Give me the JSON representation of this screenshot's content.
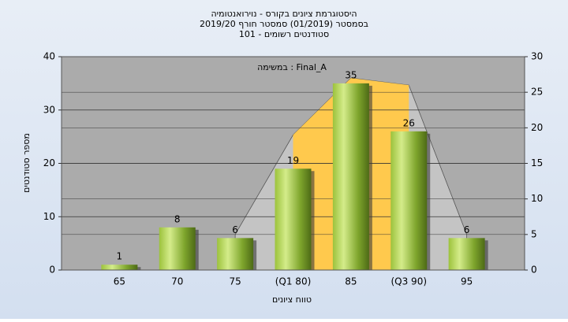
{
  "chart_data": {
    "type": "bar",
    "title": [
      "היסטוגרמת ציונים בקורס - נוירואנטומיה",
      "בסמסטר  (01/2019)  סמסטר חורף 2019/20",
      "סטודנטים רשומים - 101"
    ],
    "annotation": "במשימה : Final_A",
    "x_label": "טווח ציונים",
    "y_label": "מספר סטודנטים",
    "categories": [
      "65",
      "70",
      "75",
      "(Q1 80)",
      "85",
      "(Q3 90)",
      "95"
    ],
    "values": [
      1,
      8,
      6,
      19,
      35,
      26,
      6
    ],
    "color": "#8fbf3a",
    "ylim": [
      0,
      40
    ],
    "yticks": [
      0,
      10,
      20,
      30,
      40
    ],
    "y2lim": [
      0,
      30
    ],
    "y2ticks": [
      0,
      5,
      10,
      15,
      20,
      25,
      30
    ],
    "areas": [
      {
        "color": "#c4c4c4",
        "axis": "y2",
        "values": [
          null,
          null,
          5,
          19,
          27,
          26,
          5
        ]
      },
      {
        "color": "#ffc94d",
        "axis": "y2",
        "values": [
          null,
          null,
          null,
          19,
          27,
          26,
          null
        ]
      }
    ],
    "grid": true
  }
}
